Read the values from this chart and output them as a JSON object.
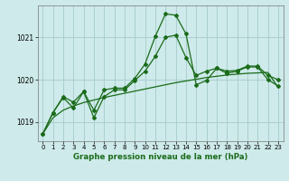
{
  "title": "Graphe pression niveau de la mer (hPa)",
  "background_color": "#ceeaea",
  "grid_color": "#aacfcf",
  "line_color": "#1a6b1a",
  "xlim": [
    -0.5,
    23.5
  ],
  "ylim": [
    1018.55,
    1021.75
  ],
  "yticks": [
    1019,
    1020,
    1021
  ],
  "xticks": [
    0,
    1,
    2,
    3,
    4,
    5,
    6,
    7,
    8,
    9,
    10,
    11,
    12,
    13,
    14,
    15,
    16,
    17,
    18,
    19,
    20,
    21,
    22,
    23
  ],
  "s_jagged": [
    1018.72,
    1019.22,
    1019.6,
    1019.47,
    1019.72,
    1019.28,
    1019.76,
    1019.8,
    1019.8,
    1020.03,
    1020.37,
    1021.02,
    1021.55,
    1021.52,
    1021.08,
    1019.88,
    1019.98,
    1020.27,
    1020.2,
    1020.22,
    1020.32,
    1020.32,
    1020.1,
    1020.0
  ],
  "s_smooth": [
    1018.72,
    1019.1,
    1019.28,
    1019.38,
    1019.46,
    1019.52,
    1019.58,
    1019.63,
    1019.68,
    1019.73,
    1019.78,
    1019.83,
    1019.88,
    1019.93,
    1019.97,
    1020.01,
    1020.05,
    1020.08,
    1020.11,
    1020.13,
    1020.15,
    1020.16,
    1020.17,
    1019.82
  ],
  "s_mid": [
    1018.72,
    1019.22,
    1019.58,
    1019.33,
    1019.72,
    1019.1,
    1019.6,
    1019.76,
    1019.76,
    1019.98,
    1020.2,
    1020.55,
    1021.0,
    1021.05,
    1020.52,
    1020.1,
    1020.2,
    1020.27,
    1020.15,
    1020.2,
    1020.3,
    1020.3,
    1020.0,
    1019.85
  ]
}
